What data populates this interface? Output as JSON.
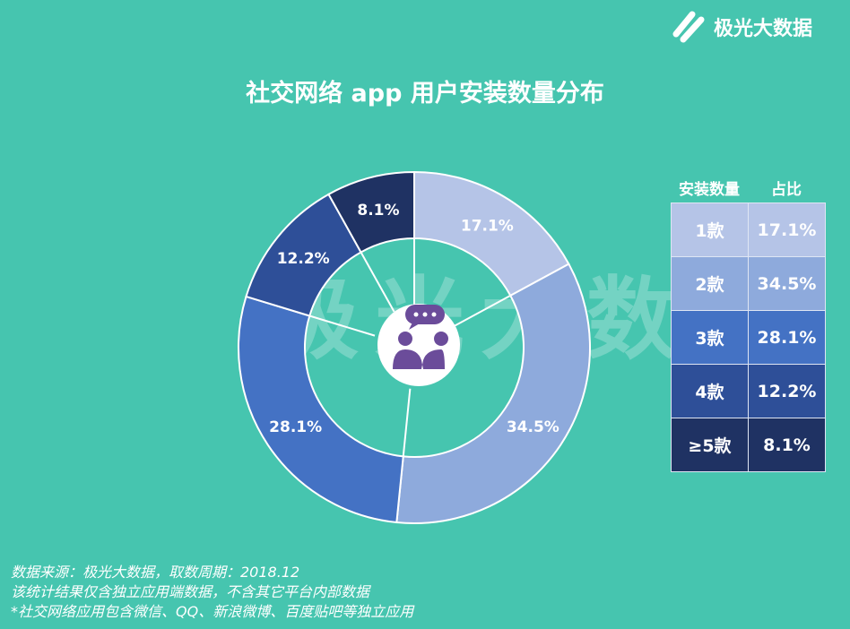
{
  "brand": "极光大数据",
  "watermark": "极光大数据",
  "chart_data": {
    "type": "pie",
    "donut": true,
    "title": "社交网络 app 用户安装数量分布",
    "categories": [
      "1款",
      "2款",
      "3款",
      "4款",
      "≥5款"
    ],
    "values": [
      17.1,
      34.5,
      28.1,
      12.2,
      8.1
    ],
    "labels": [
      "17.1%",
      "34.5%",
      "28.1%",
      "12.2%",
      "8.1%"
    ],
    "colors": [
      "#b5c4e7",
      "#8eaadc",
      "#4472c4",
      "#2e4f98",
      "#1f3263"
    ],
    "center_icon": "chat-people-icon"
  },
  "table": {
    "headers": [
      "安装数量",
      "占比"
    ],
    "rows": [
      [
        "1款",
        "17.1%"
      ],
      [
        "2款",
        "34.5%"
      ],
      [
        "3款",
        "28.1%"
      ],
      [
        "4款",
        "12.2%"
      ],
      [
        "≥5款",
        "8.1%"
      ]
    ]
  },
  "notes": [
    "数据来源：极光大数据，取数周期：2018.12",
    "该统计结果仅含独立应用端数据，不含其它平台内部数据",
    " *社交网络应用包含微信、QQ、新浪微博、百度贴吧等独立应用"
  ]
}
